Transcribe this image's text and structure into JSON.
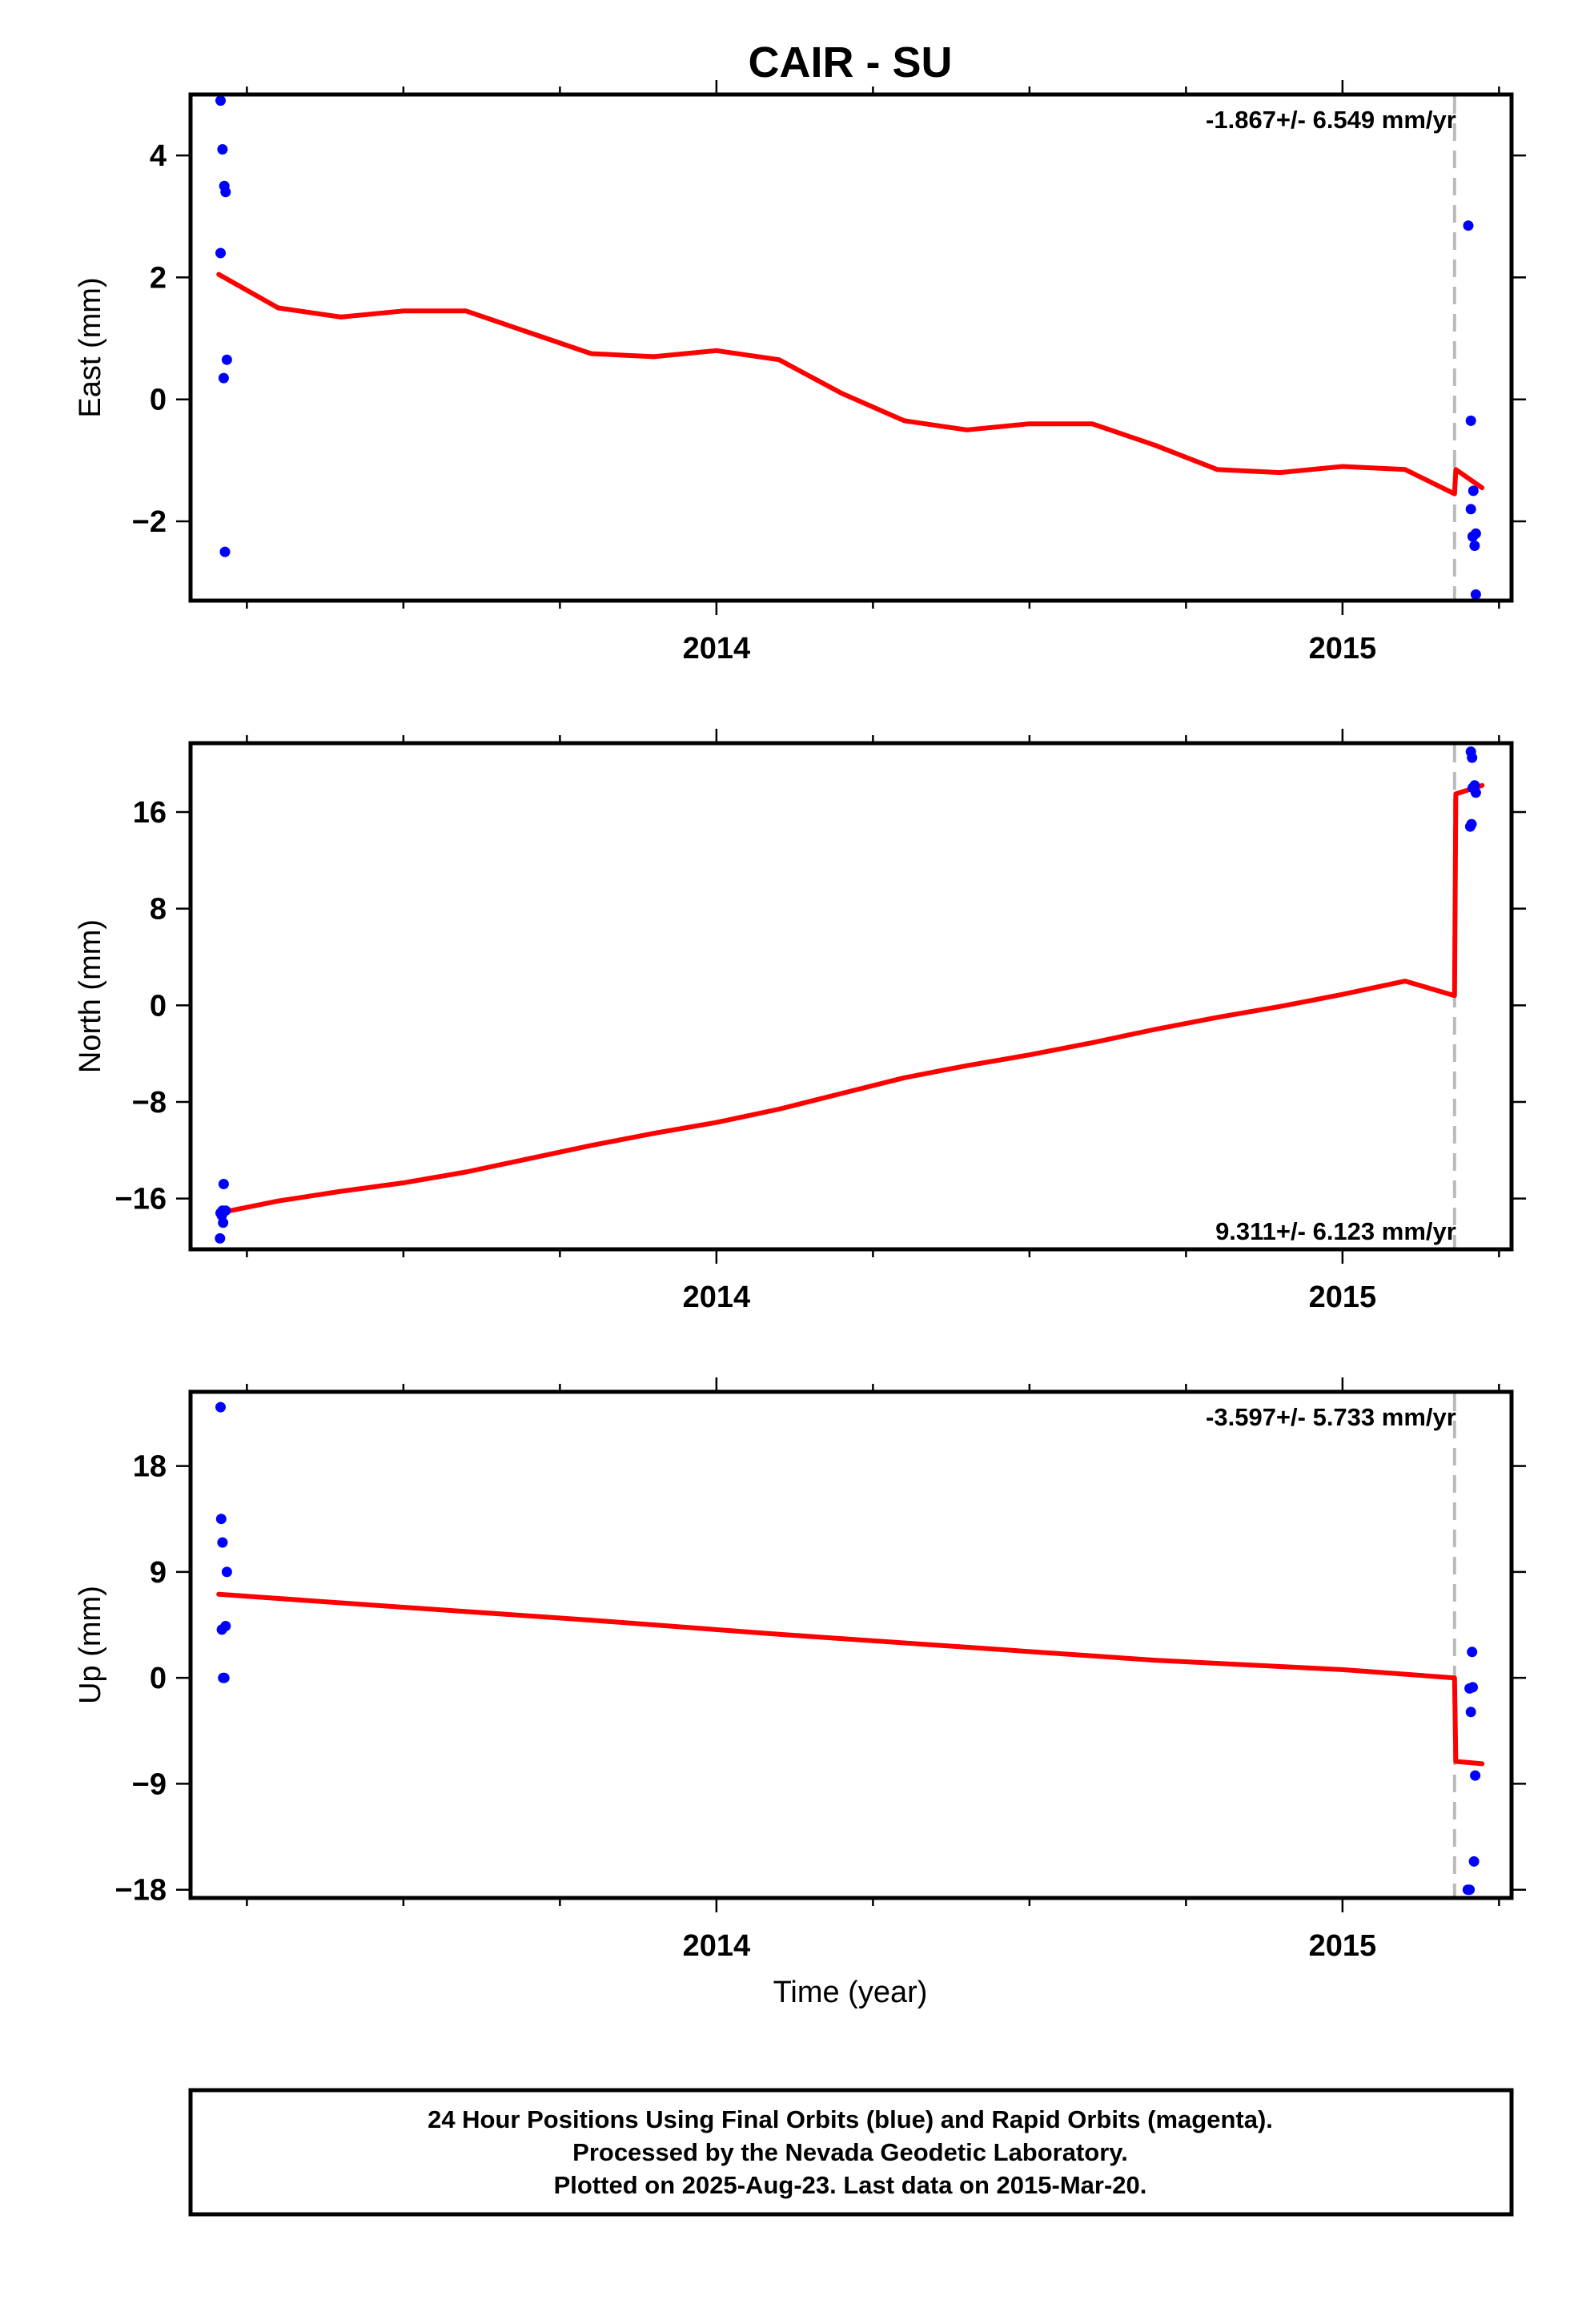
{
  "chart_data": {
    "type": "scatter",
    "title": "CAIR - SU",
    "xlabel": "Time (year)",
    "xlim": [
      2013.16,
      2015.27
    ],
    "x_tick_labels": [
      2014,
      2015
    ],
    "step_epoch": 2015.179,
    "colors": {
      "final_orbits": "#0000ff",
      "model": "#ff0000",
      "step_line": "#bbbbbb"
    },
    "panels": [
      {
        "name": "east",
        "ylabel": "East (mm)",
        "ylim": [
          -3.3,
          5.0
        ],
        "yticks": [
          -2,
          0,
          2,
          4
        ],
        "ytick_labels": [
          "−2",
          "0",
          "2",
          "4"
        ],
        "rate": "-1.867+/- 6.549 mm/yr",
        "rate_position": "top-right",
        "points": {
          "x": [
            2013.208,
            2013.211,
            2013.214,
            2013.216,
            2013.208,
            2013.218,
            2013.213,
            2013.215,
            2015.201,
            2015.205,
            2015.209,
            2015.205,
            2015.208,
            2015.213,
            2015.211,
            2015.213,
            2015.208
          ],
          "y": [
            4.9,
            4.1,
            3.5,
            3.4,
            2.4,
            0.65,
            0.35,
            -2.5,
            2.85,
            -0.35,
            -1.5,
            -1.8,
            -2.25,
            -2.2,
            -2.4,
            -3.2,
            -2.25
          ]
        },
        "model": {
          "x": [
            2013.205,
            2013.3,
            2013.4,
            2013.5,
            2013.6,
            2013.7,
            2013.8,
            2013.9,
            2014.0,
            2014.1,
            2014.2,
            2014.3,
            2014.4,
            2014.5,
            2014.6,
            2014.7,
            2014.8,
            2014.9,
            2015.0,
            2015.1,
            2015.179,
            2015.181,
            2015.223
          ],
          "y": [
            2.05,
            1.5,
            1.35,
            1.45,
            1.45,
            1.1,
            0.75,
            0.7,
            0.8,
            0.65,
            0.1,
            -0.35,
            -0.5,
            -0.4,
            -0.4,
            -0.75,
            -1.15,
            -1.2,
            -1.1,
            -1.15,
            -1.55,
            -1.15,
            -1.45
          ]
        }
      },
      {
        "name": "north",
        "ylabel": "North (mm)",
        "ylim": [
          -20.2,
          21.7
        ],
        "yticks": [
          -16,
          -8,
          0,
          8,
          16
        ],
        "ytick_labels": [
          "−16",
          "−8",
          "0",
          "8",
          "16"
        ],
        "rate": "9.311+/- 6.123 mm/yr",
        "rate_position": "bottom-right",
        "points": {
          "x": [
            2013.213,
            2013.208,
            2013.211,
            2013.216,
            2013.212,
            2013.207,
            2013.21,
            2015.205,
            2015.207,
            2015.211,
            2015.213,
            2015.208,
            2015.204,
            2015.206
          ],
          "y": [
            -14.8,
            -17.2,
            -17.0,
            -17.0,
            -18.0,
            -19.3,
            -17.4,
            21.0,
            20.5,
            18.2,
            17.6,
            18.0,
            14.8,
            15.0
          ]
        },
        "model": {
          "x": [
            2013.205,
            2013.3,
            2013.4,
            2013.5,
            2013.6,
            2013.7,
            2013.8,
            2013.9,
            2014.0,
            2014.1,
            2014.2,
            2014.3,
            2014.4,
            2014.5,
            2014.6,
            2014.7,
            2014.8,
            2014.9,
            2015.0,
            2015.1,
            2015.179,
            2015.181,
            2015.223
          ],
          "y": [
            -17.2,
            -16.2,
            -15.4,
            -14.7,
            -13.8,
            -12.7,
            -11.6,
            -10.6,
            -9.7,
            -8.6,
            -7.3,
            -6.0,
            -5.0,
            -4.1,
            -3.1,
            -2.0,
            -1.0,
            -0.1,
            0.9,
            2.0,
            0.8,
            17.5,
            18.2
          ]
        }
      },
      {
        "name": "up",
        "ylabel": "Up (mm)",
        "ylim": [
          -18.7,
          24.3
        ],
        "yticks": [
          -18,
          -9,
          0,
          9,
          18
        ],
        "ytick_labels": [
          "−18",
          "−9",
          "0",
          "9",
          "18"
        ],
        "rate": "-3.597+/- 5.733 mm/yr",
        "rate_position": "top-right",
        "points": {
          "x": [
            2013.208,
            2013.209,
            2013.211,
            2013.218,
            2013.21,
            2013.216,
            2013.212,
            2013.214,
            2015.207,
            2015.203,
            2015.208,
            2015.205,
            2015.212,
            2015.21,
            2015.2,
            2015.203
          ],
          "y": [
            23.0,
            13.5,
            11.5,
            9.0,
            4.1,
            4.4,
            0.0,
            0.0,
            2.2,
            -0.9,
            -0.8,
            -2.9,
            -8.3,
            -15.6,
            -18.0,
            -18.0
          ]
        },
        "model": {
          "x": [
            2013.205,
            2013.5,
            2013.8,
            2014.1,
            2014.4,
            2014.7,
            2015.0,
            2015.179,
            2015.181,
            2015.223
          ],
          "y": [
            7.1,
            6.0,
            4.9,
            3.7,
            2.6,
            1.5,
            0.7,
            0.0,
            -7.1,
            -7.3
          ]
        }
      }
    ]
  },
  "footer": {
    "line1": "24 Hour Positions Using Final Orbits (blue) and Rapid Orbits (magenta).",
    "line2": "Processed by the Nevada Geodetic Laboratory.",
    "line3": "Plotted on 2025-Aug-23. Last data on 2015-Mar-20."
  }
}
